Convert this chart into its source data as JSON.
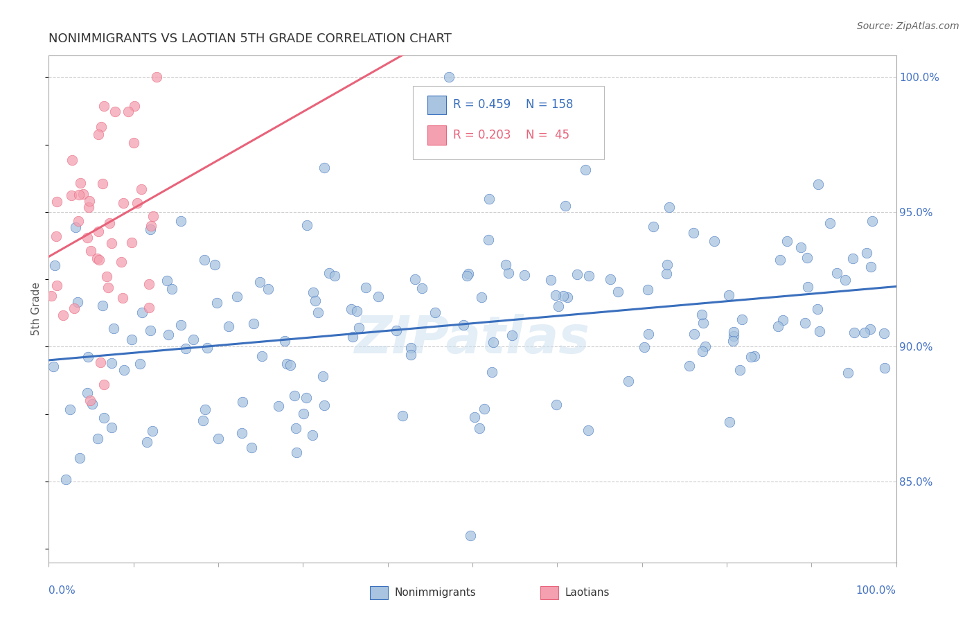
{
  "title": "NONIMMIGRANTS VS LAOTIAN 5TH GRADE CORRELATION CHART",
  "source": "Source: ZipAtlas.com",
  "ylabel": "5th Grade",
  "ylabel_right_labels": [
    "100.0%",
    "95.0%",
    "90.0%",
    "85.0%"
  ],
  "ylabel_right_values": [
    1.0,
    0.95,
    0.9,
    0.85
  ],
  "legend_blue_r": "R = 0.459",
  "legend_blue_n": "N = 158",
  "legend_pink_r": "R = 0.203",
  "legend_pink_n": "N =  45",
  "legend_label_blue": "Nonimmigrants",
  "legend_label_pink": "Laotians",
  "blue_color": "#a8c4e0",
  "pink_color": "#f4a0b0",
  "line_blue": "#3a6fbd",
  "line_pink": "#e8637a",
  "watermark": "ZIPatlas",
  "xmin": 0.0,
  "xmax": 1.0,
  "ymin": 0.82,
  "ymax": 1.008,
  "grid_color": "#cccccc",
  "title_color": "#333333",
  "axis_label_color": "#4472c4",
  "right_tick_color": "#4472c4",
  "background": "#ffffff"
}
